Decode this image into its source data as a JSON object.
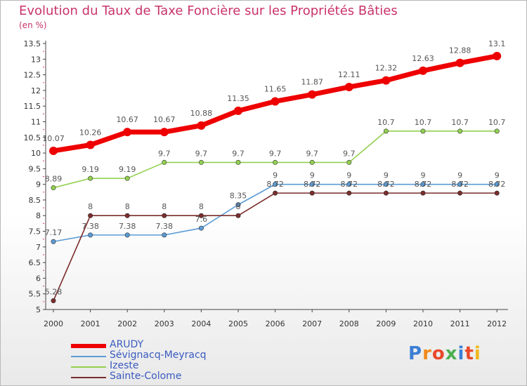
{
  "title": "Evolution du Taux de Taxe Foncière sur les Propriétés Bâties",
  "unit": "(en %)",
  "logo": "Proxiti",
  "chart_data": {
    "type": "line",
    "title": "Evolution du Taux de Taxe Foncière sur les Propriétés Bâties",
    "ylabel": "(en %)",
    "xlabel": "",
    "ylim": [
      5,
      13.5
    ],
    "grid": false,
    "x": [
      "2000",
      "2001",
      "2002",
      "2003",
      "2004",
      "2005",
      "2006",
      "2007",
      "2008",
      "2009",
      "2010",
      "2011",
      "2012"
    ],
    "y_ticks": [
      "5",
      "5.5",
      "6",
      "6.5",
      "7",
      "7.5",
      "8",
      "8.5",
      "9",
      "9.5",
      "10",
      "10.5",
      "11",
      "11.5",
      "12",
      "12.5",
      "13",
      "13.5"
    ],
    "series": [
      {
        "name": "ARUDY",
        "color": "#ee0000",
        "values": [
          10.07,
          10.26,
          10.67,
          10.67,
          10.88,
          11.35,
          11.65,
          11.87,
          12.11,
          12.32,
          12.63,
          12.88,
          13.1
        ],
        "labels": [
          "10.07",
          "10.26",
          "10.67",
          "10.67",
          "10.88",
          "11.35",
          "11.65",
          "11.87",
          "12.11",
          "12.32",
          "12.63",
          "12.88",
          "13.1"
        ]
      },
      {
        "name": "Sévignacq-Meyracq",
        "color": "#5b9bd5",
        "values": [
          7.17,
          7.38,
          7.38,
          7.38,
          7.6,
          8.35,
          9,
          9,
          9,
          9,
          9,
          9,
          9
        ],
        "labels": [
          "7.17",
          "7.38",
          "7.38",
          "7.38",
          "7.6",
          "8.35",
          "9",
          "9",
          "9",
          "9",
          "9",
          "9",
          "9"
        ]
      },
      {
        "name": "Izeste",
        "color": "#92d050",
        "values": [
          8.89,
          9.19,
          9.19,
          9.7,
          9.7,
          9.7,
          9.7,
          9.7,
          9.7,
          10.7,
          10.7,
          10.7,
          10.7
        ],
        "labels": [
          "8.89",
          "9.19",
          "9.19",
          "9.7",
          "9.7",
          "9.7",
          "9.7",
          "9.7",
          "9.7",
          "10.7",
          "10.7",
          "10.7",
          "10.7"
        ]
      },
      {
        "name": "Sainte-Colome",
        "color": "#7b2c2c",
        "values": [
          5.28,
          8,
          8,
          8,
          8,
          8,
          8.72,
          8.72,
          8.72,
          8.72,
          8.72,
          8.72,
          8.72
        ],
        "labels": [
          "5.28",
          "8",
          "8",
          "8",
          "8",
          "8",
          "8.72",
          "8.72",
          "8.72",
          "8.72",
          "8.72",
          "8.72",
          "8.72"
        ]
      }
    ]
  }
}
